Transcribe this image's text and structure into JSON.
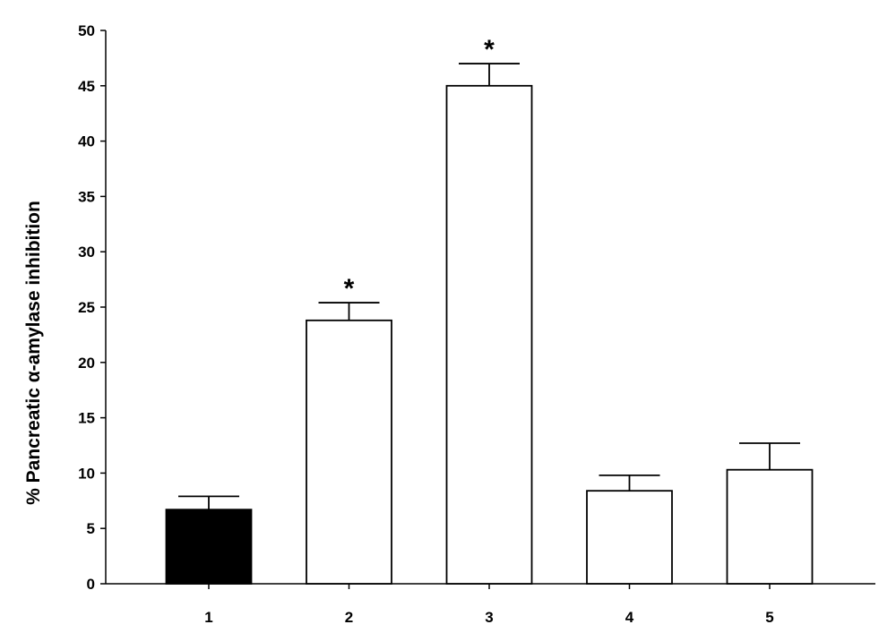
{
  "chart_data": {
    "type": "bar",
    "title": "",
    "xlabel": "",
    "ylabel": "% Pancreatic α-amylase inhibition",
    "ylim": [
      0,
      50
    ],
    "yticks": [
      0,
      5,
      10,
      15,
      20,
      25,
      30,
      35,
      40,
      45,
      50
    ],
    "categories": [
      "1",
      "2",
      "3",
      "4",
      "5"
    ],
    "values": [
      6.7,
      23.8,
      45.0,
      8.4,
      10.3
    ],
    "errors": [
      1.2,
      1.6,
      2.0,
      1.4,
      2.4
    ],
    "annotations": [
      "",
      "*",
      "*",
      "",
      ""
    ],
    "bar_fills": [
      "#000000",
      "#ffffff",
      "#ffffff",
      "#ffffff",
      "#ffffff"
    ],
    "bar_stroke": "#000000",
    "grid": false,
    "legend": "none"
  }
}
